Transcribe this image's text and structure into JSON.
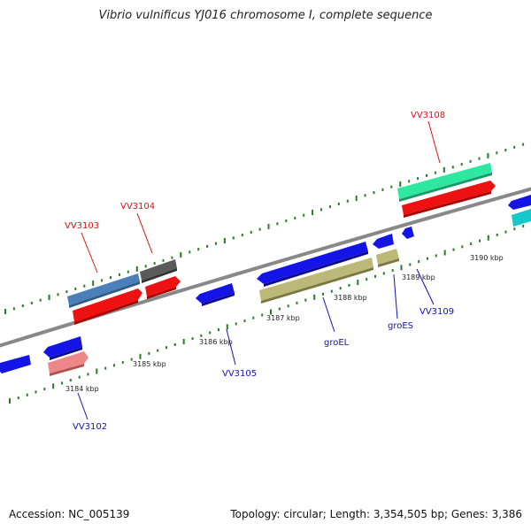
{
  "title": "Vibrio vulnificus YJ016 chromosome I, complete sequence",
  "footer": {
    "accession": "Accession: NC_005139",
    "topology": "Topology: circular; Length: 3,354,505 bp; Genes: 3,386"
  },
  "colors": {
    "blue": "#1414e6",
    "red": "#ee1111",
    "steel": "#4a7fb8",
    "grey": "#5a5a5a",
    "olive": "#bcb878",
    "mint": "#2ee8a0",
    "cyan": "#14c8cc",
    "pink": "#ee8888",
    "tick": "#2a7a2a",
    "backbone": "#888888",
    "label_red": "#dd1111",
    "label_blue": "#1111bb"
  },
  "scale_labels": [
    "3184 kbp",
    "3185 kbp",
    "3186 kbp",
    "3187 kbp",
    "3188 kbp",
    "3189 kbp",
    "3190 kbp"
  ],
  "gene_labels": {
    "red": [
      "VV3103",
      "VV3104",
      "VV3108"
    ],
    "blue": [
      "VV3102",
      "VV3105",
      "groEL",
      "groES",
      "VV3109"
    ]
  }
}
